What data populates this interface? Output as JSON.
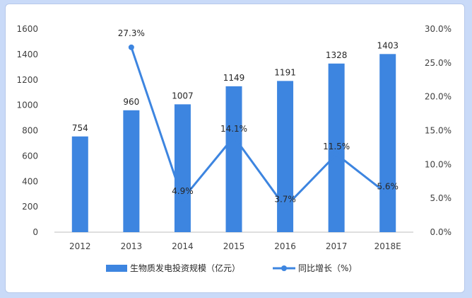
{
  "chart_data": {
    "type": "bar",
    "categories": [
      "2012",
      "2013",
      "2014",
      "2015",
      "2016",
      "2017",
      "2018E"
    ],
    "series": [
      {
        "name": "生物质发电投资规模（亿元）",
        "type": "bar",
        "axis": "left",
        "values": [
          754,
          960,
          1007,
          1149,
          1191,
          1328,
          1403
        ],
        "labels": [
          "754",
          "960",
          "1007",
          "1149",
          "1191",
          "1328",
          "1403"
        ],
        "color": "#3d85e0"
      },
      {
        "name": "同比增长（%）",
        "type": "line",
        "axis": "right",
        "values": [
          null,
          27.3,
          4.9,
          14.1,
          3.7,
          11.5,
          5.6
        ],
        "labels": [
          "",
          "27.3%",
          "4.9%",
          "14.1%",
          "3.7%",
          "11.5%",
          "5.6%"
        ],
        "color": "#3d85e0"
      }
    ],
    "y_left": {
      "ylim": [
        0,
        1600
      ],
      "ticks": [
        "0",
        "200",
        "400",
        "600",
        "800",
        "1000",
        "1200",
        "1400",
        "1600"
      ]
    },
    "y_right": {
      "ylim": [
        0,
        30
      ],
      "ticks": [
        "0.0%",
        "5.0%",
        "10.0%",
        "15.0%",
        "20.0%",
        "25.0%",
        "30.0%"
      ]
    },
    "grid": false,
    "legend_position": "bottom"
  }
}
